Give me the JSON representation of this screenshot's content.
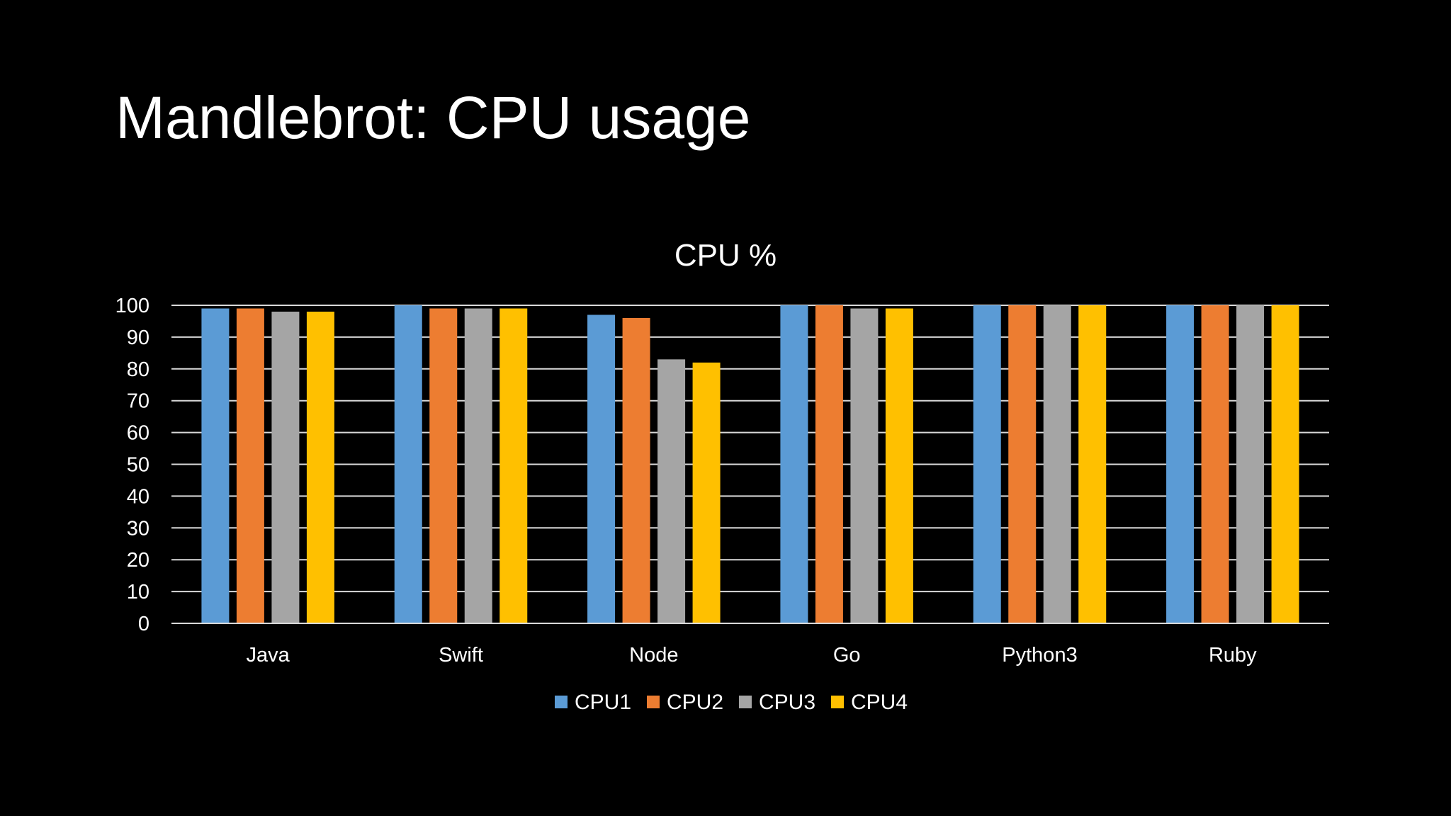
{
  "slide": {
    "title": "Mandlebrot: CPU usage"
  },
  "chart_data": {
    "type": "bar",
    "title": "CPU %",
    "xlabel": "",
    "ylabel": "",
    "categories": [
      "Java",
      "Swift",
      "Node",
      "Go",
      "Python3",
      "Ruby"
    ],
    "series": [
      {
        "name": "CPU1",
        "color": "#5b9bd5",
        "values": [
          99,
          100,
          97,
          100,
          100,
          100
        ]
      },
      {
        "name": "CPU2",
        "color": "#ed7d31",
        "values": [
          99,
          99,
          96,
          100,
          100,
          100
        ]
      },
      {
        "name": "CPU3",
        "color": "#a5a5a5",
        "values": [
          98,
          99,
          83,
          99,
          100,
          100
        ]
      },
      {
        "name": "CPU4",
        "color": "#ffc000",
        "values": [
          98,
          99,
          82,
          99,
          100,
          100
        ]
      }
    ],
    "ylim": [
      0,
      100
    ],
    "yticks": [
      0,
      10,
      20,
      30,
      40,
      50,
      60,
      70,
      80,
      90,
      100
    ],
    "grid": true,
    "legend": "bottom-center",
    "colors": {
      "background": "#000000",
      "text": "#ffffff",
      "gridline": "#d9d9d9"
    }
  }
}
